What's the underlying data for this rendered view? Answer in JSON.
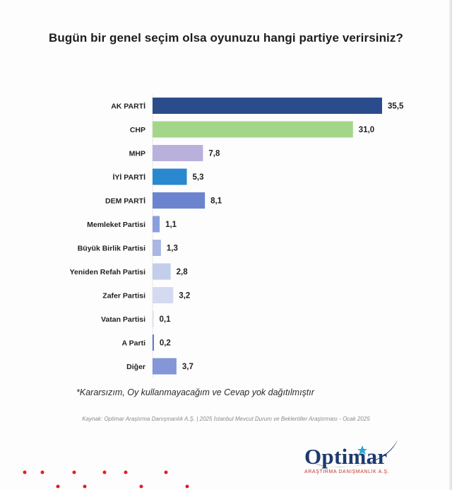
{
  "title": "Bugün bir genel seçim olsa oyunuzu hangi partiye verirsiniz?",
  "note": "*Kararsızım, Oy kullanmayacağım ve Cevap yok dağıtılmıştır",
  "source": "Kaynak: Optimar Araştırma Danışmanlık A.Ş. | 2025 İstanbul Mevcut Durum ve Beklentiler Araştırması - Ocak 2025",
  "logo": {
    "name": "Optimar",
    "subtitle": "ARAŞTIRMA DANIŞMANLIK A.Ş."
  },
  "chart_data": {
    "type": "bar",
    "orientation": "horizontal",
    "title": "Bugün bir genel seçim olsa oyunuzu hangi partiye verirsiniz?",
    "categories": [
      "AK PARTİ",
      "CHP",
      "MHP",
      "İYİ PARTİ",
      "DEM PARTİ",
      "Memleket Partisi",
      "Büyük Birlik Partisi",
      "Yeniden Refah Partisi",
      "Zafer Partisi",
      "Vatan Partisi",
      "A Parti",
      "Diğer"
    ],
    "values": [
      35.5,
      31.0,
      7.8,
      5.3,
      8.1,
      1.1,
      1.3,
      2.8,
      3.2,
      0.1,
      0.2,
      3.7
    ],
    "value_labels": [
      "35,5",
      "31,0",
      "7,8",
      "5,3",
      "8,1",
      "1,1",
      "1,3",
      "2,8",
      "3,2",
      "0,1",
      "0,2",
      "3,7"
    ],
    "colors": [
      "#2b4c8c",
      "#a4d68a",
      "#b9b1dc",
      "#2a88cf",
      "#6c84cf",
      "#8aa0dd",
      "#aab7e3",
      "#c3cdec",
      "#d4dbf1",
      "#d8dff2",
      "#4f6fc4",
      "#8296d8"
    ],
    "xlabel": "",
    "ylabel": "",
    "grid": false,
    "legend": false
  }
}
